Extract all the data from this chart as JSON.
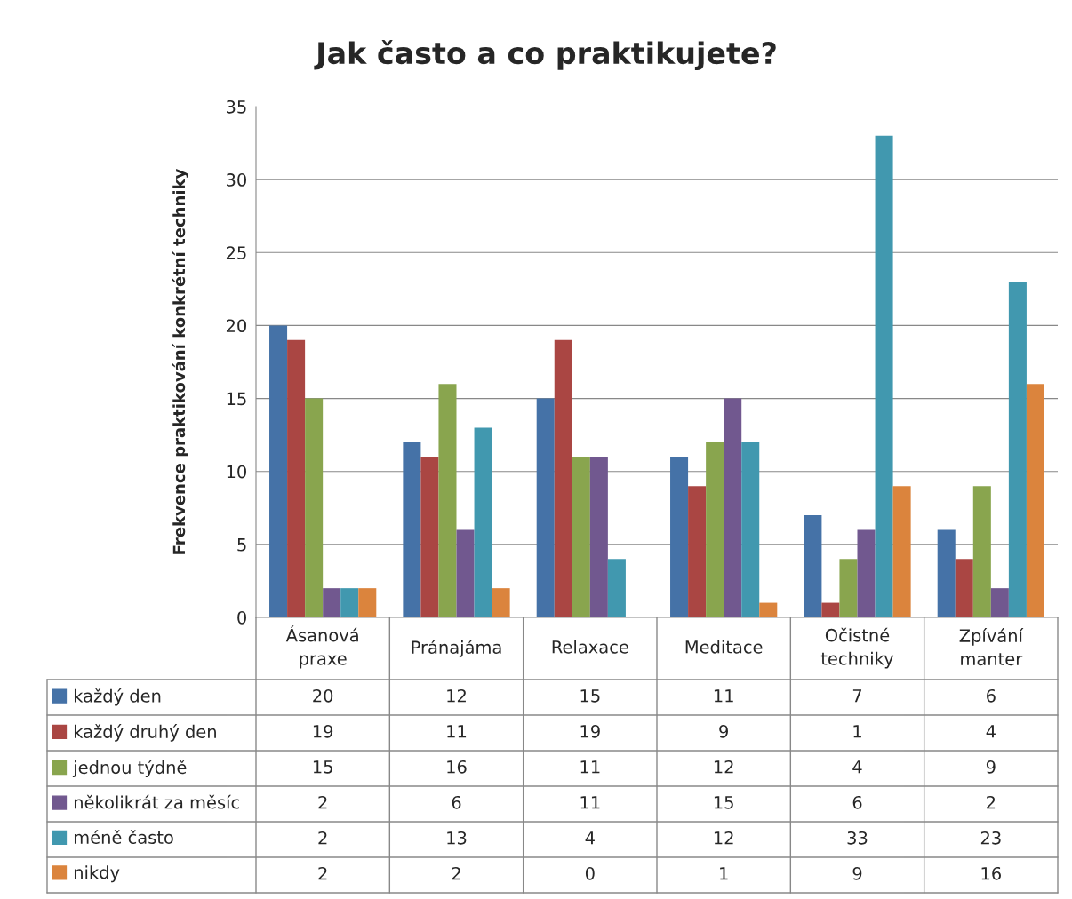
{
  "chart_data": {
    "type": "bar",
    "title": "Jak často a co praktikujete?",
    "ylabel": "Frekvence praktikování konkrétní techniky",
    "categories": [
      "Ásanová praxe",
      "Pránajáma",
      "Relaxace",
      "Meditace",
      "Očistné techniky",
      "Zpívání manter"
    ],
    "series": [
      {
        "name": "každý den",
        "color": "#4572a7",
        "values": [
          20,
          12,
          15,
          11,
          7,
          6
        ]
      },
      {
        "name": "každý druhý den",
        "color": "#aa4643",
        "values": [
          19,
          11,
          19,
          9,
          1,
          4
        ]
      },
      {
        "name": "jednou týdně",
        "color": "#89a54e",
        "values": [
          15,
          16,
          11,
          12,
          4,
          9
        ]
      },
      {
        "name": "několikrát za měsíc",
        "color": "#71588f",
        "values": [
          2,
          6,
          11,
          15,
          6,
          2
        ]
      },
      {
        "name": "méně často",
        "color": "#4198af",
        "values": [
          2,
          13,
          4,
          12,
          33,
          23
        ]
      },
      {
        "name": "nikdy",
        "color": "#db843d",
        "values": [
          2,
          2,
          0,
          1,
          9,
          16
        ]
      }
    ],
    "ylim": [
      0,
      35
    ],
    "yticks": [
      0,
      5,
      10,
      15,
      20,
      25,
      30,
      35
    ],
    "grid": "y",
    "data_labels": true,
    "legend": "bottom left"
  }
}
